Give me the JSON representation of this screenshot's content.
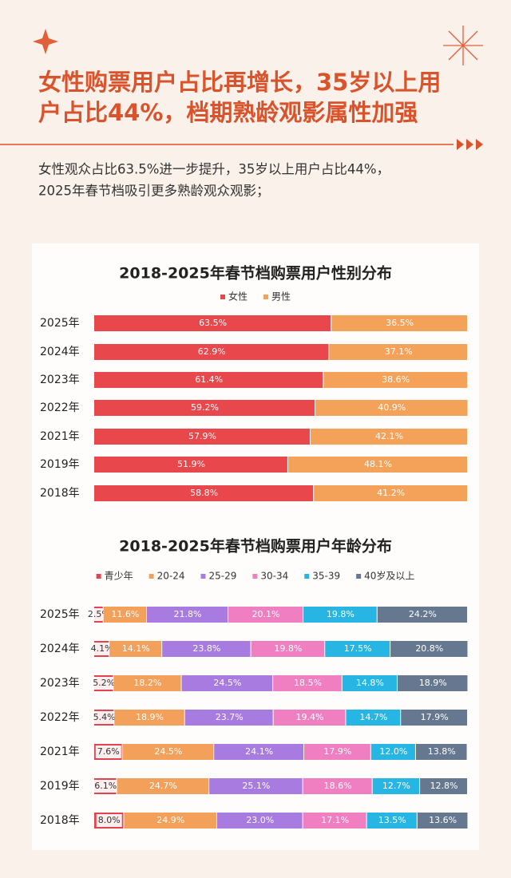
{
  "header": {
    "title_lines": [
      "女性购票用户占比再增长，35岁以上用",
      "户占比44%，档期熟龄观影属性加强"
    ],
    "subtitle_lines": [
      "女性观众占比63.5%进一步提升，35岁以上用户占比44%，",
      "2025年春节档吸引更多熟龄观众观影；"
    ]
  },
  "chart_data": [
    {
      "type": "bar",
      "orientation": "horizontal",
      "stacked": true,
      "title": "2018-2025年春节档购票用户性别分布",
      "categories": [
        "2025年",
        "2024年",
        "2023年",
        "2022年",
        "2021年",
        "2019年",
        "2018年"
      ],
      "xlim": [
        0,
        100
      ],
      "series": [
        {
          "name": "女性",
          "color": "#e8474c",
          "values": [
            63.5,
            62.9,
            61.4,
            59.2,
            57.9,
            51.9,
            58.8
          ],
          "value_labels": [
            "63.5%",
            "62.9%",
            "61.4%",
            "59.2%",
            "57.9%",
            "51.9%",
            "58.8%"
          ]
        },
        {
          "name": "男性",
          "color": "#f4a25a",
          "values": [
            36.5,
            37.1,
            38.6,
            40.9,
            42.1,
            48.1,
            41.2
          ],
          "value_labels": [
            "36.5%",
            "37.1%",
            "38.6%",
            "40.9%",
            "42.1%",
            "48.1%",
            "41.2%"
          ]
        }
      ]
    },
    {
      "type": "bar",
      "orientation": "horizontal",
      "stacked": true,
      "title": "2018-2025年春节档购票用户年龄分布",
      "categories": [
        "2025年",
        "2024年",
        "2023年",
        "2022年",
        "2021年",
        "2019年",
        "2018年"
      ],
      "xlim": [
        0,
        100
      ],
      "series": [
        {
          "name": "青少年",
          "color": "#e0454f",
          "values": [
            2.5,
            4.1,
            5.2,
            5.4,
            7.6,
            6.1,
            8.0
          ],
          "value_labels": [
            "2.5%",
            "4.1%",
            "5.2%",
            "5.4%",
            "7.6%",
            "6.1%",
            "8.0%"
          ]
        },
        {
          "name": "20-24",
          "color": "#f3a05b",
          "values": [
            11.6,
            14.1,
            18.2,
            18.9,
            24.5,
            24.7,
            24.9
          ],
          "value_labels": [
            "11.6%",
            "14.1%",
            "18.2%",
            "18.9%",
            "24.5%",
            "24.7%",
            "24.9%"
          ]
        },
        {
          "name": "25-29",
          "color": "#a77be0",
          "values": [
            21.8,
            23.8,
            24.5,
            23.7,
            24.1,
            25.1,
            23.0
          ],
          "value_labels": [
            "21.8%",
            "23.8%",
            "24.5%",
            "23.7%",
            "24.1%",
            "25.1%",
            "23.0%"
          ]
        },
        {
          "name": "30-34",
          "color": "#ef7fc1",
          "values": [
            20.1,
            19.8,
            18.5,
            19.4,
            17.9,
            18.6,
            17.1
          ],
          "value_labels": [
            "20.1%",
            "19.8%",
            "18.5%",
            "19.4%",
            "17.9%",
            "18.6%",
            "17.1%"
          ]
        },
        {
          "name": "35-39",
          "color": "#27b5e4",
          "values": [
            19.8,
            17.5,
            14.8,
            14.7,
            12.0,
            12.7,
            13.5
          ],
          "value_labels": [
            "19.8%",
            "17.5%",
            "14.8%",
            "14.7%",
            "12.0%",
            "12.7%",
            "13.5%"
          ]
        },
        {
          "name": "40岁及以上",
          "color": "#66788f",
          "values": [
            24.2,
            20.8,
            18.9,
            17.9,
            13.8,
            12.8,
            13.6
          ],
          "value_labels": [
            "24.2%",
            "20.8%",
            "18.9%",
            "17.9%",
            "13.8%",
            "12.8%",
            "13.6%"
          ]
        }
      ]
    }
  ]
}
